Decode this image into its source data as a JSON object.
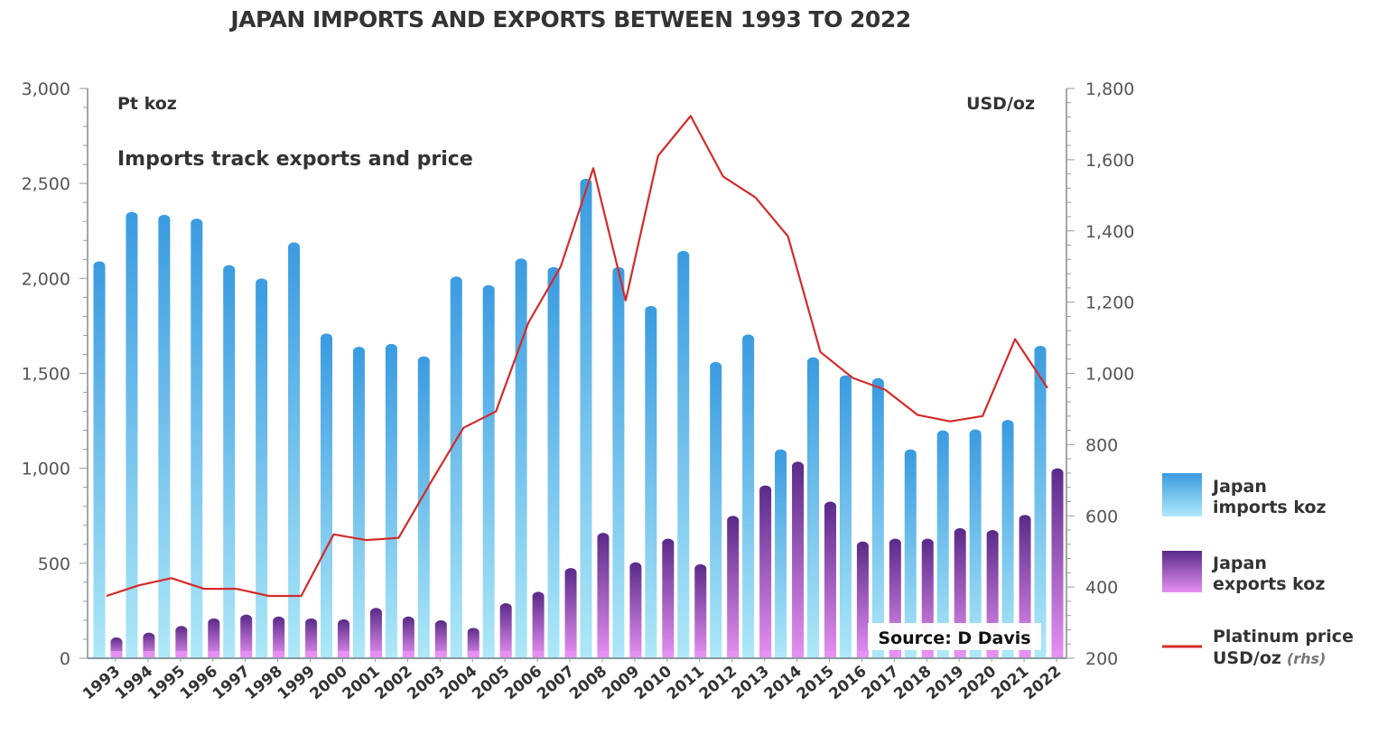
{
  "chart_data": {
    "type": "bar",
    "title": "JAPAN IMPORTS AND EXPORTS BETWEEN 1993 TO 2022",
    "subtitle": "Imports track exports and price",
    "source": "Source: D Davis",
    "ylabel_left": "Pt koz",
    "ylabel_right": "USD/oz",
    "ylim_left": [
      0,
      3000
    ],
    "ylim_right": [
      200,
      1800
    ],
    "yticks_left": [
      "0",
      "500",
      "1,000",
      "1,500",
      "2,000",
      "2,500",
      "3,000"
    ],
    "yticks_left_values": [
      0,
      500,
      1000,
      1500,
      2000,
      2500,
      3000
    ],
    "yticks_right": [
      "200",
      "400",
      "600",
      "800",
      "1,000",
      "1,200",
      "1,400",
      "1,600",
      "1,800"
    ],
    "yticks_right_values": [
      200,
      400,
      600,
      800,
      1000,
      1200,
      1400,
      1600,
      1800
    ],
    "grid": false,
    "legend_position": "right",
    "categories": [
      "1993",
      "1994",
      "1995",
      "1996",
      "1997",
      "1998",
      "1999",
      "2000",
      "2001",
      "2002",
      "2003",
      "2004",
      "2005",
      "2006",
      "2007",
      "2008",
      "2009",
      "2010",
      "2011",
      "2012",
      "2013",
      "2014",
      "2015",
      "2016",
      "2017",
      "2018",
      "2019",
      "2020",
      "2021",
      "2022"
    ],
    "series": [
      {
        "name": "Japan imports koz",
        "type": "bar",
        "axis": "left",
        "color_top": "#3a9be0",
        "color_bottom": "#a8e6f8",
        "values": [
          2090,
          2350,
          2335,
          2315,
          2070,
          2000,
          2190,
          1710,
          1640,
          1655,
          1590,
          2010,
          1965,
          2105,
          2060,
          2525,
          2060,
          1855,
          2145,
          1560,
          1705,
          1100,
          1585,
          1490,
          1475,
          1100,
          1200,
          1205,
          1255,
          1645
        ]
      },
      {
        "name": "Japan exports koz",
        "type": "bar",
        "axis": "left",
        "color_top": "#5e2d8c",
        "color_bottom": "#e08ef0",
        "values": [
          110,
          135,
          170,
          210,
          230,
          220,
          210,
          205,
          265,
          220,
          200,
          160,
          290,
          350,
          475,
          660,
          505,
          630,
          495,
          750,
          910,
          1035,
          825,
          615,
          630,
          630,
          685,
          675,
          755,
          1000
        ]
      },
      {
        "name": "Platinum price USD/oz",
        "name_suffix": "(rhs)",
        "type": "line",
        "axis": "right",
        "color": "#d42a2a",
        "values": [
          375,
          405,
          425,
          395,
          395,
          375,
          375,
          548,
          532,
          538,
          695,
          847,
          893,
          1142,
          1300,
          1576,
          1205,
          1611,
          1723,
          1553,
          1494,
          1385,
          1060,
          987,
          954,
          883,
          865,
          880,
          1096,
          959
        ]
      }
    ]
  },
  "legend": {
    "imports_line1": "Japan",
    "imports_line2": "imports koz",
    "exports_line1": "Japan",
    "exports_line2": "exports koz",
    "price_line1": "Platinum price",
    "price_line2": "USD/oz",
    "price_suffix": "(rhs)"
  }
}
